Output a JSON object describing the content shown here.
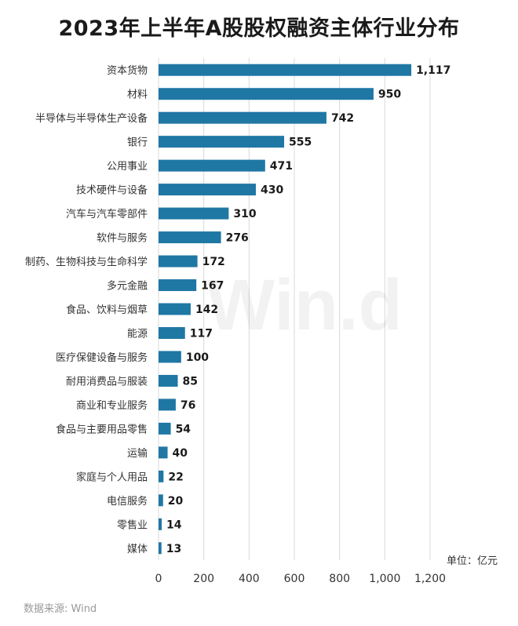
{
  "chart_data": {
    "type": "bar",
    "orientation": "horizontal",
    "title": "2023年上半年A股股权融资主体行业分布",
    "categories": [
      "资本货物",
      "材料",
      "半导体与半导体生产设备",
      "银行",
      "公用事业",
      "技术硬件与设备",
      "汽车与汽车零部件",
      "软件与服务",
      "制药、生物科技与生命科学",
      "多元金融",
      "食品、饮料与烟草",
      "能源",
      "医疗保健设备与服务",
      "耐用消费品与服装",
      "商业和专业服务",
      "食品与主要用品零售",
      "运输",
      "家庭与个人用品",
      "电信服务",
      "零售业",
      "媒体"
    ],
    "values": [
      1117,
      950,
      742,
      555,
      471,
      430,
      310,
      276,
      172,
      167,
      142,
      117,
      100,
      85,
      76,
      54,
      40,
      22,
      20,
      14,
      13
    ],
    "value_labels": [
      "1,117",
      "950",
      "742",
      "555",
      "471",
      "430",
      "310",
      "276",
      "172",
      "167",
      "142",
      "117",
      "100",
      "85",
      "76",
      "54",
      "40",
      "22",
      "20",
      "14",
      "13"
    ],
    "xlim": [
      0,
      1200
    ],
    "xticks": [
      0,
      200,
      400,
      600,
      800,
      1000,
      1200
    ],
    "xtick_labels": [
      "0",
      "200",
      "400",
      "600",
      "800",
      "1,000",
      "1,200"
    ],
    "grid": "vertical",
    "bar_color": "#1f77a4",
    "unit": "单位：亿元"
  },
  "watermark": "Win.d",
  "source": "数据来源: Wind"
}
